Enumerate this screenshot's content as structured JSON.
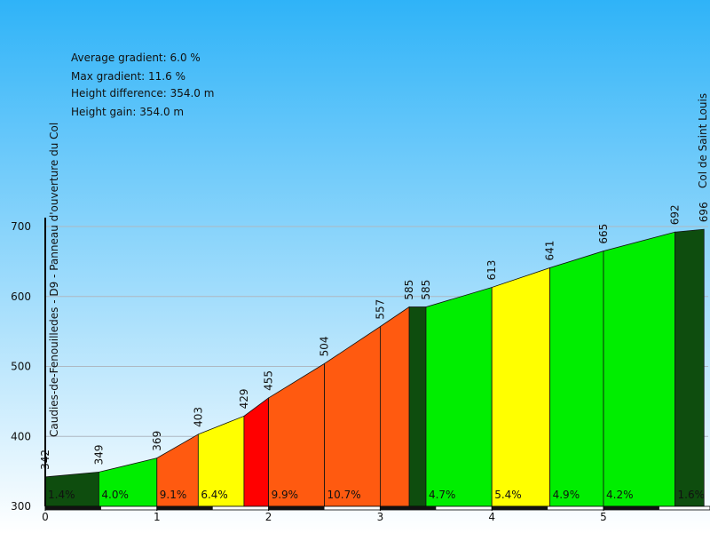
{
  "stats": [
    "Average gradient: 6.0 %",
    "Max gradient: 11.6 %",
    "Height difference: 354.0 m",
    "Height gain: 354.0 m"
  ],
  "start_label": "Caudies-de-Fenouilledes - D9 - Panneau d'ouverture du Col",
  "end_label": "Col de Saint Louis",
  "chart_data": {
    "type": "area",
    "ylim": [
      300,
      700
    ],
    "xlim": [
      0,
      5.9
    ],
    "yticks": [
      300,
      400,
      500,
      600,
      700
    ],
    "xticks": [
      0,
      1,
      2,
      3,
      4,
      5
    ],
    "points": [
      {
        "x": 0.0,
        "y": 342
      },
      {
        "x": 0.48,
        "y": 349
      },
      {
        "x": 1.0,
        "y": 369
      },
      {
        "x": 1.37,
        "y": 403
      },
      {
        "x": 1.78,
        "y": 429
      },
      {
        "x": 2.0,
        "y": 455
      },
      {
        "x": 2.5,
        "y": 504
      },
      {
        "x": 3.0,
        "y": 557
      },
      {
        "x": 3.26,
        "y": 585
      },
      {
        "x": 3.41,
        "y": 585
      },
      {
        "x": 4.0,
        "y": 613
      },
      {
        "x": 4.52,
        "y": 641
      },
      {
        "x": 5.0,
        "y": 665
      },
      {
        "x": 5.64,
        "y": 692
      },
      {
        "x": 5.9,
        "y": 696
      }
    ],
    "elevation_labels": [
      "342",
      "349",
      "369",
      "403",
      "429",
      "455",
      "504",
      "557",
      "585",
      "585",
      "613",
      "641",
      "665",
      "692",
      "696"
    ],
    "segments": [
      {
        "grade": "1.4%",
        "color": "#0e4d0e"
      },
      {
        "grade": "4.0%",
        "color": "#00ee00"
      },
      {
        "grade": "9.1%",
        "color": "#ff5a10"
      },
      {
        "grade": "6.4%",
        "color": "#ffff00"
      },
      {
        "grade": "",
        "color": "#ff0000"
      },
      {
        "grade": "9.9%",
        "color": "#ff5a10"
      },
      {
        "grade": "10.7%",
        "color": "#ff5a10"
      },
      {
        "grade": "",
        "color": "#ff5a10"
      },
      {
        "grade": "",
        "color": "#0e4d0e"
      },
      {
        "grade": "4.7%",
        "color": "#00ee00"
      },
      {
        "grade": "5.4%",
        "color": "#ffff00"
      },
      {
        "grade": "4.9%",
        "color": "#00ee00"
      },
      {
        "grade": "4.2%",
        "color": "#00ee00"
      },
      {
        "grade": "1.6%",
        "color": "#0e4d0e"
      }
    ]
  }
}
